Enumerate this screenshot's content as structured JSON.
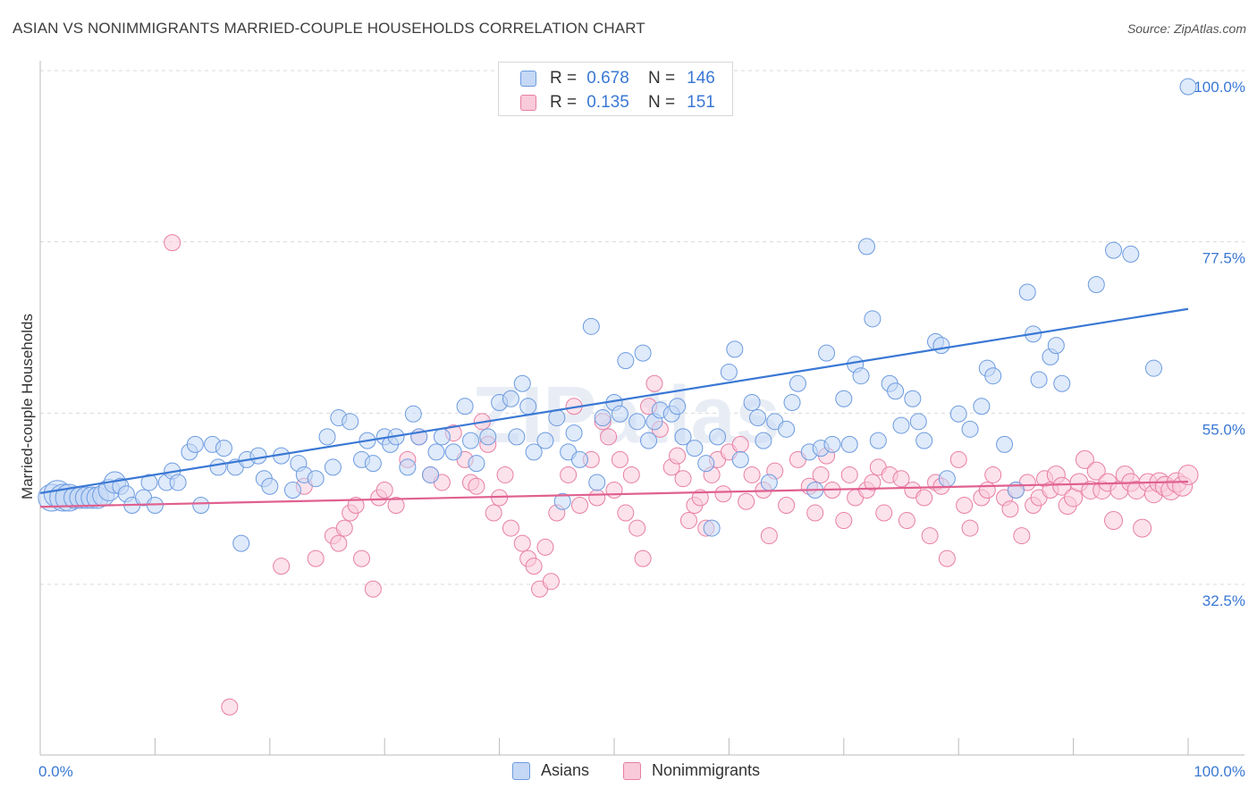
{
  "title": "ASIAN VS NONIMMIGRANTS MARRIED-COUPLE HOUSEHOLDS CORRELATION CHART",
  "source": "Source: ZipAtlas.com",
  "watermark": "ZIPatlas",
  "legend": {
    "rows": [
      {
        "r_label": "R =",
        "r_value": "0.678",
        "n_label": "N =",
        "n_value": "146",
        "color": "#6c9be0",
        "fill": "#c5d8f5"
      },
      {
        "r_label": "R =",
        "r_value": "0.135",
        "n_label": "N =",
        "n_value": "151",
        "color": "#e87fa4",
        "fill": "#f9cada"
      }
    ]
  },
  "bottom_legend": [
    {
      "label": "Asians",
      "color": "#6c9be0",
      "fill": "#c5d8f5"
    },
    {
      "label": "Nonimmigrants",
      "color": "#e87fa4",
      "fill": "#f9cada"
    }
  ],
  "chart_data": {
    "type": "scatter",
    "title": "ASIAN VS NONIMMIGRANTS MARRIED-COUPLE HOUSEHOLDS CORRELATION CHART",
    "xlabel": "",
    "ylabel": "Married-couple Households",
    "xlim": [
      0,
      100
    ],
    "ylim": [
      10,
      102
    ],
    "x_tick_labels": [
      "0.0%",
      "100.0%"
    ],
    "y_ticks": [
      32.5,
      55.0,
      77.5,
      100.0
    ],
    "y_tick_labels": [
      "32.5%",
      "55.0%",
      "77.5%",
      "100.0%"
    ],
    "grid": "horizontal dashed",
    "series": [
      {
        "name": "Asians",
        "color": "#3a78d4",
        "trend": {
          "x": [
            0,
            100
          ],
          "y": [
            46.6,
            70.8
          ]
        },
        "points": [
          [
            1,
            46
          ],
          [
            1.5,
            46.5
          ],
          [
            2,
            46
          ],
          [
            2.5,
            46
          ],
          [
            3,
            46
          ],
          [
            3.5,
            46
          ],
          [
            4,
            46
          ],
          [
            4.5,
            46
          ],
          [
            5,
            46
          ],
          [
            5.5,
            46.3
          ],
          [
            6,
            47
          ],
          [
            6.5,
            48
          ],
          [
            7,
            47.5
          ],
          [
            7.5,
            46.5
          ],
          [
            8,
            45
          ],
          [
            9,
            46
          ],
          [
            9.5,
            48
          ],
          [
            10,
            45
          ],
          [
            11,
            48
          ],
          [
            11.5,
            49.5
          ],
          [
            12,
            48
          ],
          [
            13,
            52
          ],
          [
            13.5,
            53
          ],
          [
            14,
            45
          ],
          [
            15,
            53
          ],
          [
            15.5,
            50
          ],
          [
            16,
            52.5
          ],
          [
            17,
            50
          ],
          [
            17.5,
            40
          ],
          [
            18,
            51
          ],
          [
            19,
            51.5
          ],
          [
            19.5,
            48.5
          ],
          [
            20,
            47.5
          ],
          [
            21,
            51.5
          ],
          [
            22,
            47
          ],
          [
            22.5,
            50.5
          ],
          [
            23,
            49
          ],
          [
            24,
            48.5
          ],
          [
            25,
            54
          ],
          [
            25.5,
            50
          ],
          [
            26,
            56.5
          ],
          [
            27,
            56
          ],
          [
            28,
            51
          ],
          [
            28.5,
            53.5
          ],
          [
            29,
            50.5
          ],
          [
            30,
            54
          ],
          [
            30.5,
            53
          ],
          [
            31,
            54
          ],
          [
            32,
            50
          ],
          [
            32.5,
            57
          ],
          [
            33,
            54
          ],
          [
            34,
            49
          ],
          [
            34.5,
            52
          ],
          [
            35,
            54
          ],
          [
            36,
            52
          ],
          [
            37,
            58
          ],
          [
            37.5,
            53.5
          ],
          [
            38,
            50.5
          ],
          [
            39,
            54
          ],
          [
            40,
            58.5
          ],
          [
            41,
            59
          ],
          [
            41.5,
            54
          ],
          [
            42,
            61
          ],
          [
            42.5,
            58
          ],
          [
            43,
            52
          ],
          [
            44,
            53.5
          ],
          [
            45,
            56.5
          ],
          [
            45.5,
            45.5
          ],
          [
            46,
            52
          ],
          [
            46.5,
            54.5
          ],
          [
            47,
            51
          ],
          [
            48,
            68.5
          ],
          [
            48.5,
            48
          ],
          [
            49,
            56.5
          ],
          [
            50,
            58.5
          ],
          [
            50.5,
            57
          ],
          [
            51,
            64
          ],
          [
            52,
            56
          ],
          [
            52.5,
            65
          ],
          [
            53,
            53.5
          ],
          [
            53.5,
            56
          ],
          [
            54,
            57.5
          ],
          [
            55,
            57
          ],
          [
            55.5,
            58
          ],
          [
            56,
            54
          ],
          [
            57,
            52.5
          ],
          [
            58,
            50.5
          ],
          [
            58.5,
            42
          ],
          [
            59,
            54
          ],
          [
            60,
            62.5
          ],
          [
            60.5,
            65.5
          ],
          [
            61,
            51
          ],
          [
            62,
            58.5
          ],
          [
            62.5,
            56.5
          ],
          [
            63,
            53.5
          ],
          [
            63.5,
            48
          ],
          [
            64,
            56
          ],
          [
            65,
            55
          ],
          [
            65.5,
            58.5
          ],
          [
            66,
            61
          ],
          [
            67,
            52
          ],
          [
            67.5,
            47
          ],
          [
            68,
            52.5
          ],
          [
            68.5,
            65
          ],
          [
            69,
            53
          ],
          [
            70,
            59
          ],
          [
            70.5,
            53
          ],
          [
            71,
            63.5
          ],
          [
            71.5,
            62
          ],
          [
            72,
            79
          ],
          [
            72.5,
            69.5
          ],
          [
            73,
            53.5
          ],
          [
            74,
            61
          ],
          [
            74.5,
            60
          ],
          [
            75,
            55.5
          ],
          [
            76,
            59
          ],
          [
            76.5,
            56
          ],
          [
            77,
            53.5
          ],
          [
            78,
            66.5
          ],
          [
            78.5,
            66
          ],
          [
            79,
            48.5
          ],
          [
            80,
            57
          ],
          [
            81,
            55
          ],
          [
            82,
            58
          ],
          [
            82.5,
            63
          ],
          [
            83,
            62
          ],
          [
            84,
            53
          ],
          [
            85,
            47
          ],
          [
            86,
            73
          ],
          [
            86.5,
            67.5
          ],
          [
            87,
            61.5
          ],
          [
            88,
            64.5
          ],
          [
            88.5,
            66
          ],
          [
            89,
            61
          ],
          [
            92,
            74
          ],
          [
            93.5,
            78.5
          ],
          [
            95,
            78
          ],
          [
            97,
            63
          ],
          [
            100,
            100
          ]
        ],
        "sizes": "larger markers near x=0"
      },
      {
        "name": "Nonimmigrants",
        "color": "#e0608f",
        "trend": {
          "x": [
            0,
            100
          ],
          "y": [
            44.8,
            48.1
          ]
        },
        "points": [
          [
            11.5,
            79.5
          ],
          [
            16.5,
            18.5
          ],
          [
            21,
            37
          ],
          [
            23,
            47.5
          ],
          [
            24,
            38
          ],
          [
            25.5,
            41
          ],
          [
            26,
            40
          ],
          [
            26.5,
            42
          ],
          [
            27,
            44
          ],
          [
            27.5,
            45
          ],
          [
            28,
            38
          ],
          [
            29,
            34
          ],
          [
            29.5,
            46
          ],
          [
            30,
            47
          ],
          [
            31,
            45
          ],
          [
            32,
            51
          ],
          [
            33,
            54
          ],
          [
            34,
            49
          ],
          [
            35,
            48
          ],
          [
            36,
            54.5
          ],
          [
            37,
            51
          ],
          [
            37.5,
            48
          ],
          [
            38,
            47.5
          ],
          [
            38.5,
            56
          ],
          [
            39,
            53
          ],
          [
            39.5,
            44
          ],
          [
            40,
            46
          ],
          [
            40.5,
            49
          ],
          [
            41,
            42
          ],
          [
            42,
            40
          ],
          [
            42.5,
            38
          ],
          [
            43,
            37
          ],
          [
            43.5,
            34
          ],
          [
            44,
            39.5
          ],
          [
            44.5,
            35
          ],
          [
            45,
            44
          ],
          [
            46,
            49
          ],
          [
            46.5,
            58
          ],
          [
            47,
            45
          ],
          [
            48,
            51
          ],
          [
            48.5,
            46
          ],
          [
            49,
            56
          ],
          [
            49.5,
            54
          ],
          [
            50,
            47
          ],
          [
            50.5,
            51
          ],
          [
            51,
            44
          ],
          [
            51.5,
            49
          ],
          [
            52,
            42
          ],
          [
            52.5,
            38
          ],
          [
            53,
            58
          ],
          [
            53.5,
            61
          ],
          [
            54,
            55
          ],
          [
            55,
            50
          ],
          [
            55.5,
            51.5
          ],
          [
            56,
            48.5
          ],
          [
            56.5,
            43
          ],
          [
            57,
            45
          ],
          [
            57.5,
            46
          ],
          [
            58,
            42
          ],
          [
            58.5,
            49
          ],
          [
            59,
            51
          ],
          [
            59.5,
            46.5
          ],
          [
            60,
            52
          ],
          [
            61,
            53
          ],
          [
            61.5,
            45.5
          ],
          [
            62,
            49
          ],
          [
            63,
            47
          ],
          [
            63.5,
            41
          ],
          [
            64,
            49.5
          ],
          [
            65,
            45
          ],
          [
            66,
            51
          ],
          [
            67,
            47.5
          ],
          [
            67.5,
            44
          ],
          [
            68,
            49
          ],
          [
            68.5,
            51.5
          ],
          [
            69,
            47
          ],
          [
            70,
            43
          ],
          [
            70.5,
            49
          ],
          [
            71,
            46
          ],
          [
            72,
            47
          ],
          [
            72.5,
            48
          ],
          [
            73,
            50
          ],
          [
            73.5,
            44
          ],
          [
            74,
            49
          ],
          [
            75,
            48.5
          ],
          [
            75.5,
            43
          ],
          [
            76,
            47
          ],
          [
            77,
            46
          ],
          [
            77.5,
            41
          ],
          [
            78,
            48
          ],
          [
            78.5,
            47.5
          ],
          [
            79,
            38
          ],
          [
            80,
            51
          ],
          [
            80.5,
            45
          ],
          [
            81,
            42
          ],
          [
            82,
            46
          ],
          [
            82.5,
            47
          ],
          [
            83,
            49
          ],
          [
            84,
            46
          ],
          [
            84.5,
            44.5
          ],
          [
            85,
            47
          ],
          [
            85.5,
            41
          ],
          [
            86,
            48
          ],
          [
            86.5,
            45
          ],
          [
            87,
            46
          ],
          [
            87.5,
            48.5
          ],
          [
            88,
            47
          ],
          [
            88.5,
            49
          ],
          [
            89,
            47.5
          ],
          [
            89.5,
            45
          ],
          [
            90,
            46
          ],
          [
            90.5,
            48
          ],
          [
            91,
            51
          ],
          [
            91.5,
            47
          ],
          [
            92,
            49.5
          ],
          [
            92.5,
            47
          ],
          [
            93,
            48
          ],
          [
            93.5,
            43
          ],
          [
            94,
            47
          ],
          [
            94.5,
            49
          ],
          [
            95,
            48
          ],
          [
            95.5,
            47
          ],
          [
            96,
            42
          ],
          [
            96.5,
            48
          ],
          [
            97,
            46.5
          ],
          [
            97.5,
            48
          ],
          [
            98,
            47.5
          ],
          [
            98.5,
            47
          ],
          [
            99,
            48
          ],
          [
            99.5,
            47.5
          ],
          [
            100,
            49
          ]
        ],
        "sizes": "larger markers at right end"
      }
    ]
  }
}
